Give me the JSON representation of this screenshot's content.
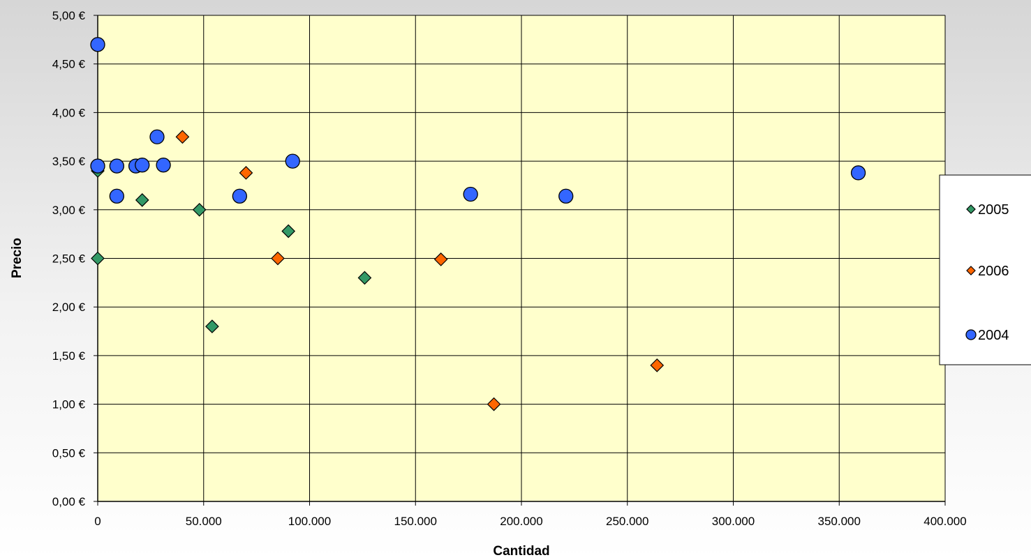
{
  "chart_data": {
    "type": "scatter",
    "title": "",
    "xlabel": "Cantidad",
    "ylabel": "Precio",
    "xlim": [
      0,
      400000
    ],
    "ylim": [
      0,
      5
    ],
    "x_ticks": [
      0,
      50000,
      100000,
      150000,
      200000,
      250000,
      300000,
      350000,
      400000
    ],
    "x_tick_labels": [
      "0",
      "50.000",
      "100.000",
      "150.000",
      "200.000",
      "250.000",
      "300.000",
      "350.000",
      "400.000"
    ],
    "y_ticks": [
      0,
      0.5,
      1,
      1.5,
      2,
      2.5,
      3,
      3.5,
      4,
      4.5,
      5
    ],
    "y_tick_labels": [
      "0,00 €",
      "0,50 €",
      "1,00 €",
      "1,50 €",
      "2,00 €",
      "2,50 €",
      "3,00 €",
      "3,50 €",
      "4,00 €",
      "4,50 €",
      "5,00 €"
    ],
    "grid": true,
    "plot_background": "#ffffcc",
    "legend_position": "right",
    "series": [
      {
        "name": "2005",
        "marker": "diamond",
        "color": "#339966",
        "points": [
          {
            "x": 0,
            "y": 3.4
          },
          {
            "x": 0,
            "y": 2.5
          },
          {
            "x": 21000,
            "y": 3.1
          },
          {
            "x": 48000,
            "y": 3.0
          },
          {
            "x": 54000,
            "y": 1.8
          },
          {
            "x": 90000,
            "y": 2.78
          },
          {
            "x": 126000,
            "y": 2.3
          }
        ]
      },
      {
        "name": "2006",
        "marker": "diamond",
        "color": "#ff6600",
        "points": [
          {
            "x": 40000,
            "y": 3.75
          },
          {
            "x": 70000,
            "y": 3.38
          },
          {
            "x": 85000,
            "y": 2.5
          },
          {
            "x": 162000,
            "y": 2.49
          },
          {
            "x": 187000,
            "y": 1.0
          },
          {
            "x": 264000,
            "y": 1.4
          }
        ]
      },
      {
        "name": "2004",
        "marker": "circle",
        "color": "#3366ff",
        "points": [
          {
            "x": 0,
            "y": 4.7
          },
          {
            "x": 0,
            "y": 3.45
          },
          {
            "x": 9000,
            "y": 3.45
          },
          {
            "x": 9000,
            "y": 3.14
          },
          {
            "x": 18000,
            "y": 3.45
          },
          {
            "x": 21000,
            "y": 3.46
          },
          {
            "x": 28000,
            "y": 3.75
          },
          {
            "x": 31000,
            "y": 3.46
          },
          {
            "x": 67000,
            "y": 3.14
          },
          {
            "x": 92000,
            "y": 3.5
          },
          {
            "x": 176000,
            "y": 3.16
          },
          {
            "x": 221000,
            "y": 3.14
          },
          {
            "x": 359000,
            "y": 3.38
          }
        ]
      }
    ]
  }
}
